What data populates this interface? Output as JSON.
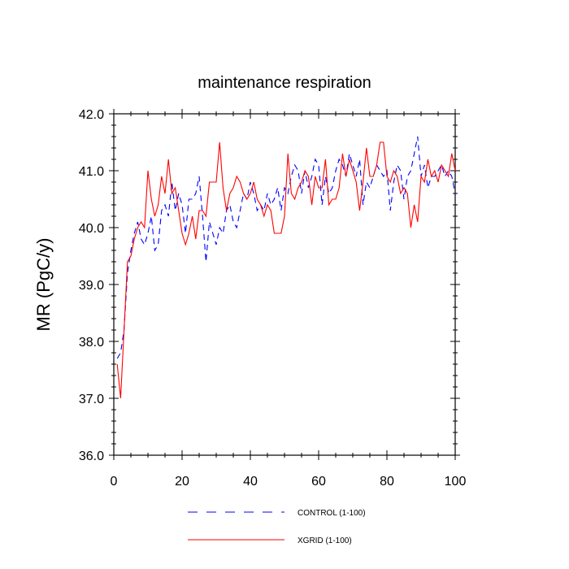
{
  "chart_data": {
    "type": "line",
    "title": "maintenance respiration",
    "xlabel": "",
    "ylabel": "MR  (PgC/y)",
    "xlim": [
      0,
      100
    ],
    "ylim": [
      36.0,
      42.0
    ],
    "x_ticks": [
      0,
      20,
      40,
      60,
      80,
      100
    ],
    "x_tick_labels": [
      "0",
      "20",
      "40",
      "60",
      "80",
      "100"
    ],
    "y_ticks": [
      36.0,
      37.0,
      38.0,
      39.0,
      40.0,
      41.0,
      42.0
    ],
    "y_tick_labels": [
      "36.0",
      "37.0",
      "38.0",
      "39.0",
      "40.0",
      "41.0",
      "42.0"
    ],
    "grid": false,
    "legend_position": "bottom",
    "x": [
      1,
      2,
      3,
      4,
      5,
      6,
      7,
      8,
      9,
      10,
      11,
      12,
      13,
      14,
      15,
      16,
      17,
      18,
      19,
      20,
      21,
      22,
      23,
      24,
      25,
      26,
      27,
      28,
      29,
      30,
      31,
      32,
      33,
      34,
      35,
      36,
      37,
      38,
      39,
      40,
      41,
      42,
      43,
      44,
      45,
      46,
      47,
      48,
      49,
      50,
      51,
      52,
      53,
      54,
      55,
      56,
      57,
      58,
      59,
      60,
      61,
      62,
      63,
      64,
      65,
      66,
      67,
      68,
      69,
      70,
      71,
      72,
      73,
      74,
      75,
      76,
      77,
      78,
      79,
      80,
      81,
      82,
      83,
      84,
      85,
      86,
      87,
      88,
      89,
      90,
      91,
      92,
      93,
      94,
      95,
      96,
      97,
      98,
      99,
      100
    ],
    "series": [
      {
        "name": "CONTROL (1-100)",
        "color": "#0000ff",
        "style": "dashed",
        "values": [
          37.7,
          37.8,
          38.2,
          39.2,
          39.6,
          39.9,
          40.1,
          39.8,
          39.7,
          39.9,
          40.2,
          39.6,
          39.7,
          40.3,
          40.4,
          40.2,
          40.8,
          40.3,
          40.6,
          40.4,
          39.9,
          40.5,
          40.5,
          40.6,
          40.9,
          40.2,
          39.4,
          40.1,
          39.9,
          39.7,
          40.0,
          39.9,
          40.3,
          40.4,
          40.1,
          40.0,
          40.3,
          40.6,
          40.5,
          40.8,
          40.6,
          40.3,
          40.4,
          40.3,
          40.6,
          40.4,
          40.5,
          40.7,
          40.3,
          40.7,
          40.6,
          40.9,
          41.1,
          41.0,
          40.6,
          41.0,
          40.7,
          40.9,
          41.2,
          41.1,
          40.4,
          40.9,
          40.6,
          40.7,
          41.0,
          41.2,
          41.1,
          40.9,
          41.3,
          41.1,
          40.9,
          41.2,
          40.4,
          40.8,
          40.7,
          40.9,
          41.1,
          41.0,
          40.9,
          41.0,
          40.3,
          40.8,
          41.1,
          41.0,
          40.5,
          40.9,
          41.0,
          41.3,
          41.6,
          40.9,
          41.1,
          40.7,
          40.9,
          40.9,
          41.0,
          41.1,
          40.9,
          41.0,
          40.9,
          40.6
        ]
      },
      {
        "name": "XGRID (1-100)",
        "color": "#ff0000",
        "style": "solid",
        "values": [
          37.6,
          37.0,
          38.2,
          39.4,
          39.5,
          39.8,
          40.0,
          40.1,
          40.0,
          41.0,
          40.5,
          40.2,
          40.4,
          40.9,
          40.6,
          41.2,
          40.6,
          40.7,
          40.3,
          39.9,
          39.7,
          39.9,
          40.2,
          39.8,
          40.3,
          40.3,
          40.2,
          40.8,
          40.8,
          40.8,
          41.5,
          40.7,
          40.3,
          40.6,
          40.7,
          40.9,
          40.8,
          40.6,
          40.5,
          40.6,
          40.8,
          40.5,
          40.4,
          40.2,
          40.4,
          40.3,
          39.9,
          39.9,
          39.9,
          40.2,
          41.3,
          40.6,
          40.5,
          40.7,
          40.8,
          41.0,
          40.9,
          40.4,
          40.9,
          40.7,
          40.7,
          41.2,
          40.4,
          40.5,
          40.5,
          40.7,
          41.3,
          40.9,
          41.2,
          41.0,
          40.8,
          40.3,
          40.8,
          41.4,
          40.9,
          40.9,
          41.1,
          41.5,
          41.5,
          40.9,
          40.8,
          41.0,
          40.9,
          40.6,
          40.7,
          40.6,
          40.0,
          40.4,
          40.1,
          40.9,
          40.8,
          41.2,
          40.9,
          41.0,
          40.8,
          41.1,
          41.0,
          40.9,
          41.3,
          41.0
        ]
      }
    ]
  }
}
